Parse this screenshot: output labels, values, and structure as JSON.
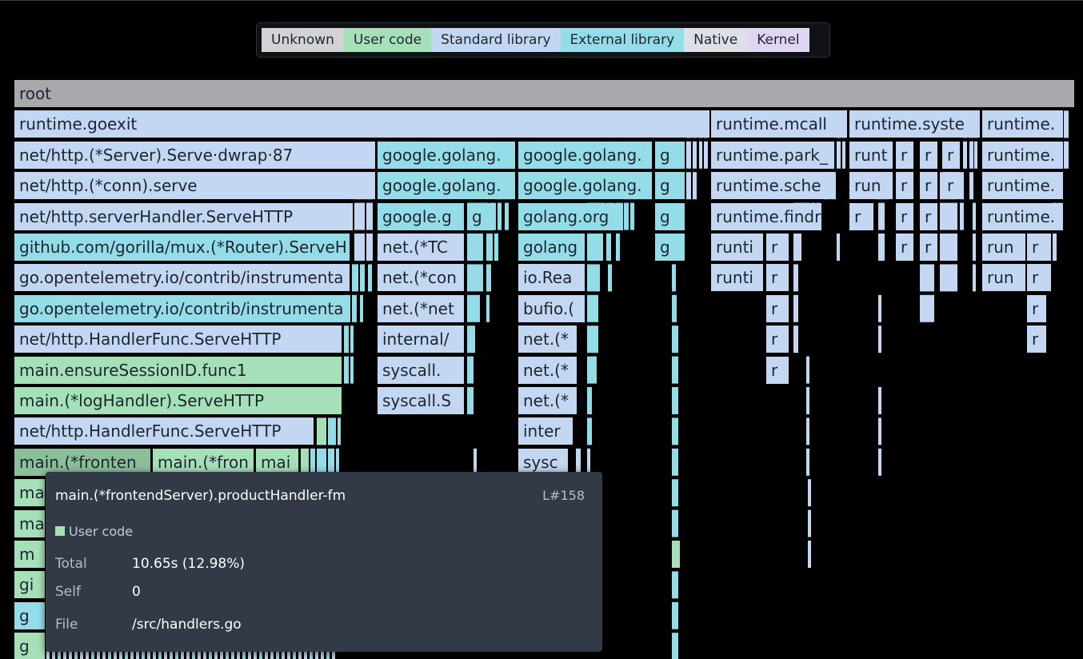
{
  "legend": {
    "items": [
      {
        "label": "Unknown",
        "color": "#d3d3d5"
      },
      {
        "label": "User code",
        "color": "#a6e0b8"
      },
      {
        "label": "Standard library",
        "color": "#c3d7f2"
      },
      {
        "label": "External library",
        "color": "#94dde8"
      },
      {
        "label": "Native",
        "color": "#dde1e6"
      },
      {
        "label": "Kernel",
        "color": "#e0d6f3"
      }
    ]
  },
  "colors": {
    "root": "#a9a8ad",
    "std": "#c3d7f2",
    "ext": "#94dde8",
    "user": "#a6e0b8",
    "user_selected": "#8bbf9a"
  },
  "flamegraph": {
    "frames": [
      {
        "label": "root",
        "kind": "root"
      },
      {
        "label": "runtime.goexit",
        "kind": "std"
      },
      {
        "label": "runtime.mcall",
        "kind": "std"
      },
      {
        "label": "runtime.syste",
        "kind": "std"
      },
      {
        "label": "runtime.",
        "kind": "std"
      },
      {
        "label": "net/http.(*Server).Serve·dwrap·87",
        "kind": "std"
      },
      {
        "label": "google.golang.",
        "kind": "ext"
      },
      {
        "label": "google.golang.",
        "kind": "ext"
      },
      {
        "label": "g",
        "kind": "ext"
      },
      {
        "label": "runtime.park_",
        "kind": "std"
      },
      {
        "label": "runt",
        "kind": "std"
      },
      {
        "label": "r",
        "kind": "std"
      },
      {
        "label": "r",
        "kind": "std"
      },
      {
        "label": "r",
        "kind": "std"
      },
      {
        "label": "runtime.",
        "kind": "std"
      },
      {
        "label": "net/http.(*conn).serve",
        "kind": "std"
      },
      {
        "label": "google.golang.",
        "kind": "ext"
      },
      {
        "label": "google.golang.",
        "kind": "ext"
      },
      {
        "label": "g",
        "kind": "ext"
      },
      {
        "label": "runtime.sche",
        "kind": "std"
      },
      {
        "label": "run",
        "kind": "std"
      },
      {
        "label": "r",
        "kind": "std"
      },
      {
        "label": "r",
        "kind": "std"
      },
      {
        "label": "r",
        "kind": "std"
      },
      {
        "label": "runtime.",
        "kind": "std"
      },
      {
        "label": "net/http.serverHandler.ServeHTTP",
        "kind": "std"
      },
      {
        "label": "google.g",
        "kind": "ext"
      },
      {
        "label": "g",
        "kind": "ext"
      },
      {
        "label": "golang.org",
        "kind": "ext"
      },
      {
        "label": "g",
        "kind": "ext"
      },
      {
        "label": "runtime.findr",
        "kind": "std"
      },
      {
        "label": "r",
        "kind": "std"
      },
      {
        "label": "r",
        "kind": "std"
      },
      {
        "label": "r",
        "kind": "std"
      },
      {
        "label": "runtime.",
        "kind": "std"
      },
      {
        "label": "github.com/gorilla/mux.(*Router).ServeH",
        "kind": "ext"
      },
      {
        "label": "net.(*TC",
        "kind": "std"
      },
      {
        "label": "golang",
        "kind": "ext"
      },
      {
        "label": "g",
        "kind": "ext"
      },
      {
        "label": "runti",
        "kind": "std"
      },
      {
        "label": "r",
        "kind": "std"
      },
      {
        "label": "r",
        "kind": "std"
      },
      {
        "label": "r",
        "kind": "std"
      },
      {
        "label": "run",
        "kind": "std"
      },
      {
        "label": "r",
        "kind": "std"
      },
      {
        "label": "go.opentelemetry.io/contrib/instrumenta",
        "kind": "std"
      },
      {
        "label": "net.(*con",
        "kind": "std"
      },
      {
        "label": "io.Rea",
        "kind": "std"
      },
      {
        "label": "runti",
        "kind": "std"
      },
      {
        "label": "r",
        "kind": "std"
      },
      {
        "label": "run",
        "kind": "std"
      },
      {
        "label": "r",
        "kind": "std"
      },
      {
        "label": "go.opentelemetry.io/contrib/instrumenta",
        "kind": "ext"
      },
      {
        "label": "net.(*net",
        "kind": "std"
      },
      {
        "label": "bufio.(",
        "kind": "std"
      },
      {
        "label": "r",
        "kind": "std"
      },
      {
        "label": "r",
        "kind": "std"
      },
      {
        "label": "net/http.HandlerFunc.ServeHTTP",
        "kind": "std"
      },
      {
        "label": "internal/",
        "kind": "std"
      },
      {
        "label": "net.(*",
        "kind": "std"
      },
      {
        "label": "r",
        "kind": "std"
      },
      {
        "label": "r",
        "kind": "std"
      },
      {
        "label": "main.ensureSessionID.func1",
        "kind": "user"
      },
      {
        "label": "syscall.",
        "kind": "std"
      },
      {
        "label": "net.(*",
        "kind": "std"
      },
      {
        "label": "r",
        "kind": "std"
      },
      {
        "label": "main.(*logHandler).ServeHTTP",
        "kind": "user"
      },
      {
        "label": "syscall.S",
        "kind": "std"
      },
      {
        "label": "net.(*",
        "kind": "std"
      },
      {
        "label": "net/http.HandlerFunc.ServeHTTP",
        "kind": "std"
      },
      {
        "label": "inter",
        "kind": "std"
      },
      {
        "label": "main.(*fronten",
        "kind": "user_selected"
      },
      {
        "label": "main.(*fron",
        "kind": "user"
      },
      {
        "label": "mai",
        "kind": "user"
      },
      {
        "label": "sysc",
        "kind": "std"
      },
      {
        "label": "ma",
        "kind": "user"
      },
      {
        "label": "ma",
        "kind": "user"
      },
      {
        "label": "m",
        "kind": "user"
      },
      {
        "label": "gi",
        "kind": "user"
      },
      {
        "label": "g",
        "kind": "ext"
      },
      {
        "label": "g",
        "kind": "user"
      }
    ]
  },
  "tooltip": {
    "function_name": "main.(*frontendServer).productHandler-fm",
    "line": "L#158",
    "category": "User code",
    "total_label": "Total",
    "total_value": "10.65s (12.98%)",
    "self_label": "Self",
    "self_value": "0",
    "file_label": "File",
    "file_value": "/src/handlers.go"
  }
}
